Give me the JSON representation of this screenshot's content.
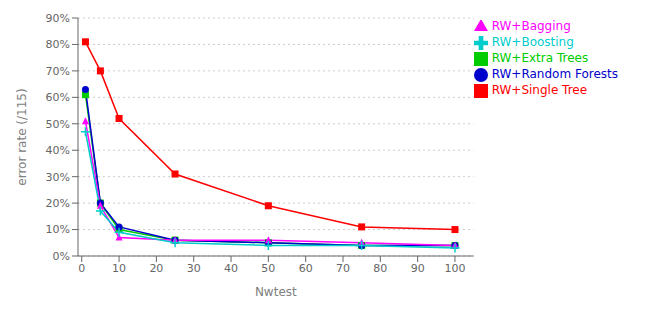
{
  "chart_data": {
    "type": "line",
    "xlabel": "Nwtest",
    "ylabel": "error rate (/115)",
    "x": [
      1,
      5,
      10,
      25,
      50,
      75,
      100
    ],
    "series": [
      {
        "name": "RW+Single Tree",
        "color": "#ff0000",
        "marker": "square",
        "values": [
          0.81,
          0.7,
          0.52,
          0.31,
          0.19,
          0.11,
          0.1
        ]
      },
      {
        "name": "RW+Extra Trees",
        "color": "#00cc00",
        "marker": "square",
        "values": [
          0.61,
          0.2,
          0.1,
          0.06,
          0.05,
          0.04,
          0.04
        ]
      },
      {
        "name": "RW+Random Forests",
        "color": "#0000cc",
        "marker": "circle",
        "values": [
          0.63,
          0.2,
          0.11,
          0.06,
          0.05,
          0.04,
          0.04
        ]
      },
      {
        "name": "RW+Bagging",
        "color": "#ff00ff",
        "marker": "triangle",
        "values": [
          0.51,
          0.19,
          0.07,
          0.06,
          0.06,
          0.05,
          0.04
        ]
      },
      {
        "name": "RW+Boosting",
        "color": "#00cccc",
        "marker": "plus",
        "values": [
          0.47,
          0.17,
          0.09,
          0.05,
          0.04,
          0.04,
          0.03
        ]
      }
    ],
    "xlim": [
      -1,
      105
    ],
    "xticks": [
      0,
      10,
      20,
      30,
      40,
      50,
      60,
      70,
      80,
      90,
      100
    ],
    "ylim": [
      0.0,
      0.9
    ],
    "yticks": [
      {
        "value": 0.0,
        "label": "0%"
      },
      {
        "value": 0.1,
        "label": "10%"
      },
      {
        "value": 0.2,
        "label": "20%"
      },
      {
        "value": 0.3,
        "label": "30%"
      },
      {
        "value": 0.4,
        "label": "40%"
      },
      {
        "value": 0.5,
        "label": "50%"
      },
      {
        "value": 0.6,
        "label": "60%"
      },
      {
        "value": 0.7,
        "label": "70%"
      },
      {
        "value": 0.8,
        "label": "80%"
      },
      {
        "value": 0.9,
        "label": "90%"
      }
    ],
    "grid": true,
    "legend": "upper right"
  }
}
